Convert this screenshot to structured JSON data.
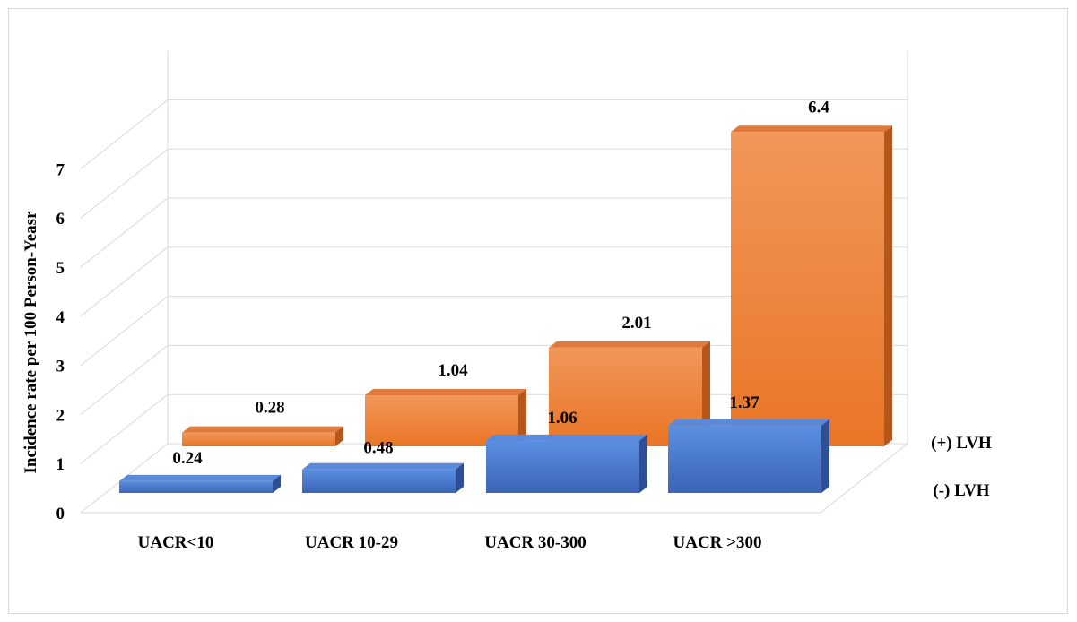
{
  "chart_data": {
    "type": "bar",
    "variant": "3d-column",
    "title": "",
    "ylabel": "Incidence rate per 100 Person-Yeasr",
    "xlabel": "",
    "ylim": [
      0,
      7
    ],
    "yticks": [
      "0",
      "1",
      "2",
      "3",
      "4",
      "5",
      "6",
      "7"
    ],
    "grid": true,
    "categories": [
      "UACR<10",
      "UACR 10-29",
      "UACR 30-300",
      "UACR >300"
    ],
    "series": [
      {
        "name": "(-) LVH",
        "values": [
          0.24,
          0.48,
          1.06,
          1.37
        ],
        "labels": [
          "0.24",
          "0.48",
          "1.06",
          "1.37"
        ],
        "color": "#4472C4"
      },
      {
        "name": "(+) LVH",
        "values": [
          0.28,
          1.04,
          2.01,
          6.4
        ],
        "labels": [
          "0.28",
          "1.04",
          "2.01",
          "6.4"
        ],
        "color": "#ED7D31"
      }
    ]
  }
}
